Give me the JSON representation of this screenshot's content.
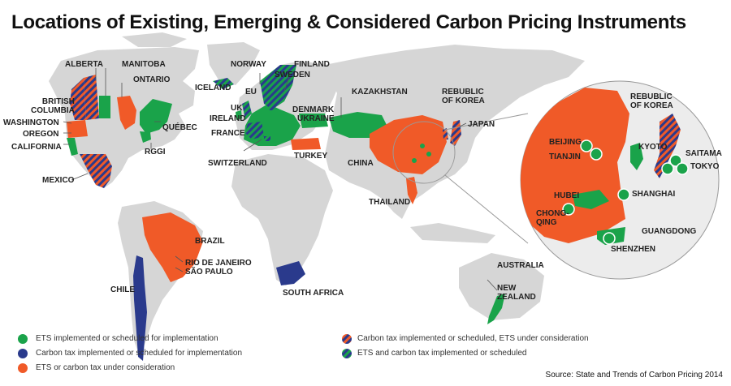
{
  "title": "Locations of Existing, Emerging  & Considered Carbon Pricing Instruments",
  "source": "Source: State and Trends of Carbon Pricing 2014",
  "colors": {
    "ets": "#1aa34a",
    "carbon_tax": "#2a3a8c",
    "under_consideration": "#f05a28",
    "land": "#d6d6d6",
    "ocean": "#ffffff"
  },
  "legend": [
    {
      "label": "ETS implemented or scheduled for implementation",
      "style": "ets"
    },
    {
      "label": "Carbon tax implemented or scheduled for implementation",
      "style": "carbon_tax"
    },
    {
      "label": "ETS or carbon tax under consideration",
      "style": "under_consideration"
    },
    {
      "label": "Carbon tax implemented or scheduled, ETS under consideration",
      "style": "tax_ets_consid"
    },
    {
      "label": "ETS and carbon tax implemented or scheduled",
      "style": "ets_and_tax"
    }
  ],
  "labels": {
    "alberta": "ALBERTA",
    "manitoba": "MANITOBA",
    "ontario": "ONTARIO",
    "british_columbia": "BRITISH\nCOLUMBIA",
    "washington": "WASHINGTON",
    "oregon": "OREGON",
    "california": "CALIFORNIA",
    "quebec": "QUÉBEC",
    "rggi": "RGGI",
    "mexico": "MEXICO",
    "norway": "NORWAY",
    "finland": "FINLAND",
    "sweden": "SWEDEN",
    "iceland": "ICELAND",
    "eu": "EU",
    "uk": "UK",
    "ireland": "IRELAND",
    "france": "FRANCE",
    "denmark": "DENMARK",
    "ukraine": "UKRAINE",
    "switzerland": "SWITZERLAND",
    "turkey": "TURKEY",
    "kazakhstan": "KAZAKHSTAN",
    "korea_small": "REBUBLIC\nOF KOREA",
    "japan": "JAPAN",
    "china": "CHINA",
    "thailand": "THAILAND",
    "brazil": "BRAZIL",
    "rio": "RIO DE JANEIRO",
    "sao_paulo": "SÃO PAULO",
    "chile": "CHILE",
    "south_africa": "SOUTH AFRICA",
    "australia": "AUSTRALIA",
    "new_zealand": "NEW\nZEALAND",
    "korea_big": "REBUBLIC\nOF KOREA",
    "beijing": "BEIJING",
    "tianjin": "TIANJIN",
    "kyoto": "KYOTO",
    "saitama": "SAITAMA",
    "tokyo": "TOKYO",
    "hubei": "HUBEI",
    "shanghai": "SHANGHAI",
    "chongqing": "CHONG-\nQING",
    "guangdong": "GUANGDONG",
    "shenzhen": "SHENZHEN"
  }
}
